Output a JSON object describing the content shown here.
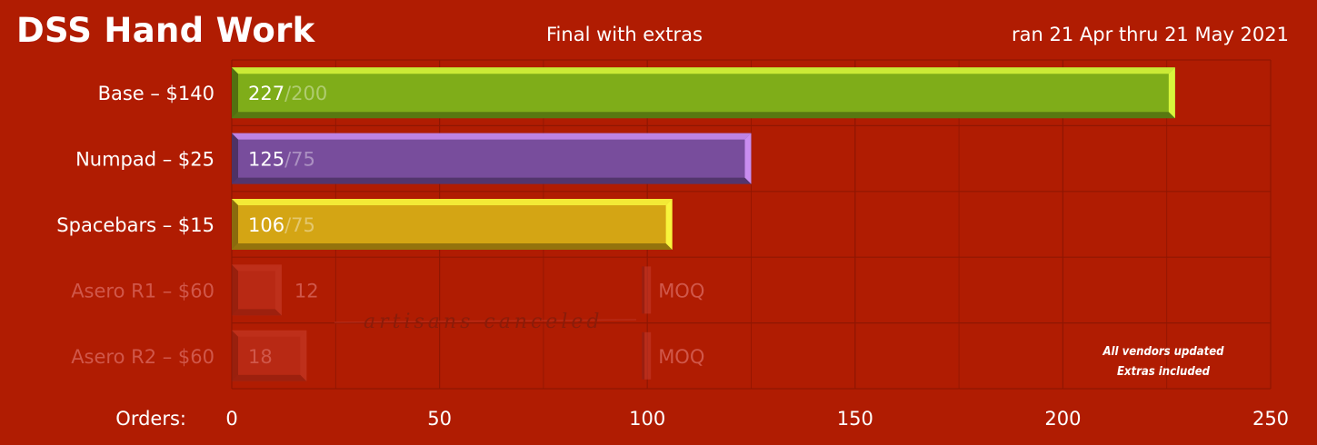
{
  "header": {
    "title": "DSS Hand Work",
    "subtitle": "Final with extras",
    "dates": "ran 21 Apr thru 21 May 2021"
  },
  "notes": {
    "line1": "All vendors updated",
    "line2": "Extras included",
    "canceled": "artisans canceled"
  },
  "colors": {
    "background": "#b01c02",
    "grid": "#8f1602"
  },
  "chart_data": {
    "type": "bar",
    "orientation": "horizontal",
    "xlabel": "Orders:",
    "xlim": [
      0,
      250
    ],
    "xticks": [
      0,
      50,
      100,
      150,
      200,
      250
    ],
    "grid": true,
    "categories": [
      "Base – $140",
      "Numpad – $25",
      "Spacebars – $15",
      "Asero R1 – $60",
      "Asero R2 – $60"
    ],
    "values": [
      227,
      125,
      106,
      12,
      18
    ],
    "targets": [
      200,
      75,
      75,
      null,
      null
    ],
    "target_labels": [
      "/200",
      "/75",
      "/75",
      "MOQ",
      "MOQ"
    ],
    "moq_marker": [
      null,
      null,
      null,
      100,
      100
    ],
    "canceled": [
      false,
      false,
      false,
      true,
      true
    ],
    "bar_colors": [
      "#7fad19",
      "#784d9c",
      "#d4a514",
      "#c3392b",
      "#c3392b"
    ],
    "highlight_colors": [
      "#d8f53c",
      "#c98df0",
      "#f8f53c",
      "#d14a3a",
      "#d14a3a"
    ]
  }
}
